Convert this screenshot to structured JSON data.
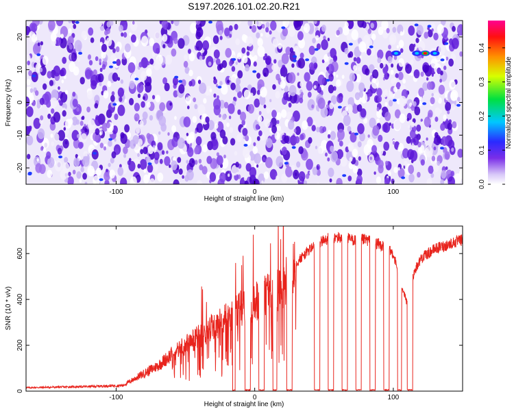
{
  "title": "S197.2026.101.02.20.R21",
  "colors": {
    "snr_line": "#e8241d",
    "colorbar": [
      "#ffffff",
      "#9e5cf0",
      "#5a00d6",
      "#1f3cff",
      "#00c8ff",
      "#00e000",
      "#ffff00",
      "#ff8000",
      "#ff0000",
      "#ff00a0"
    ]
  },
  "chart_data": [
    {
      "type": "heatmap",
      "name": "spectrogram",
      "xlabel": "Height of straight line (km)",
      "ylabel": "Frequency (Hz)",
      "xlim": [
        -165,
        150
      ],
      "ylim": [
        -25,
        25
      ],
      "xticks": [
        -100,
        0,
        100
      ],
      "yticks": [
        -20,
        -10,
        0,
        10,
        20
      ],
      "colorbar": {
        "label": "Normalized spectral amplitude",
        "range": [
          0,
          0.48
        ],
        "ticks": [
          0.0,
          0.1,
          0.2,
          0.3,
          0.4
        ]
      },
      "hotspots": [
        {
          "x": 123,
          "y": 15,
          "value": 0.45
        },
        {
          "x": 117,
          "y": 15,
          "value": 0.12
        },
        {
          "x": 130,
          "y": 15,
          "value": 0.1
        },
        {
          "x": 102,
          "y": 15,
          "value": 0.1
        }
      ]
    },
    {
      "type": "line",
      "name": "snr",
      "xlabel": "Height of straight line (km)",
      "ylabel": "SNR (10 * v/v)",
      "xlim": [
        -165,
        150
      ],
      "ylim": [
        0,
        720
      ],
      "xticks": [
        -100,
        0,
        100
      ],
      "yticks": [
        0,
        200,
        400,
        600
      ],
      "envelope": {
        "x": [
          -165,
          -120,
          -95,
          -85,
          -70,
          -60,
          -50,
          -40,
          -30,
          -20,
          -10,
          0,
          10,
          20,
          30,
          40,
          50,
          60,
          70,
          80,
          90,
          100,
          105,
          110,
          115,
          120,
          130,
          140,
          150
        ],
        "y": [
          15,
          20,
          25,
          60,
          110,
          160,
          200,
          240,
          280,
          320,
          360,
          390,
          430,
          460,
          560,
          620,
          660,
          670,
          660,
          660,
          640,
          600,
          480,
          380,
          520,
          580,
          620,
          640,
          660
        ]
      },
      "dropouts": [
        {
          "x_start": -16,
          "x_end": -14
        },
        {
          "x_start": -7,
          "x_end": -3
        },
        {
          "x_start": 3,
          "x_end": 7
        },
        {
          "x_start": 13,
          "x_end": 16
        },
        {
          "x_start": 23,
          "x_end": 27
        },
        {
          "x_start": 43,
          "x_end": 47
        },
        {
          "x_start": 53,
          "x_end": 57
        },
        {
          "x_start": 63,
          "x_end": 67
        },
        {
          "x_start": 73,
          "x_end": 77
        },
        {
          "x_start": 83,
          "x_end": 87
        },
        {
          "x_start": 93,
          "x_end": 97
        },
        {
          "x_start": 103,
          "x_end": 106
        },
        {
          "x_start": 110,
          "x_end": 114
        }
      ]
    }
  ]
}
